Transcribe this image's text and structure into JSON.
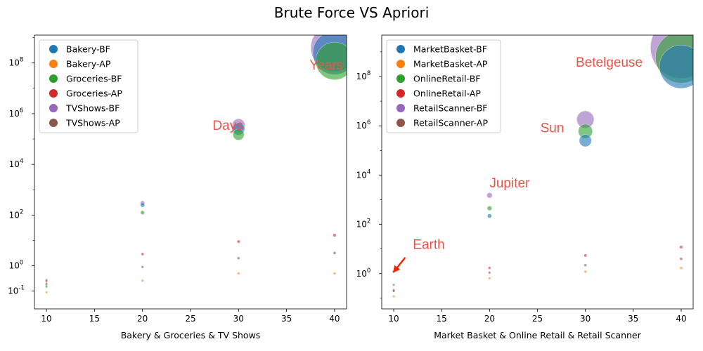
{
  "figure_title": "Brute Force VS Apriori",
  "chart_data": [
    {
      "type": "scatter",
      "xlabel": "Bakery & Groceries & TV Shows",
      "ylabel": "",
      "xlim": [
        8.75,
        41.25
      ],
      "ylim_log10": [
        -1.7,
        9.1
      ],
      "yscale": "log",
      "xticks": [
        "10",
        "15",
        "20",
        "25",
        "30",
        "35",
        "40"
      ],
      "yticks": [
        {
          "exp": -1,
          "label": "10",
          "sup": "-1"
        },
        {
          "exp": 0,
          "label": "10",
          "sup": "0"
        },
        {
          "exp": 2,
          "label": "10",
          "sup": "2"
        },
        {
          "exp": 4,
          "label": "10",
          "sup": "4"
        },
        {
          "exp": 6,
          "label": "10",
          "sup": "6"
        },
        {
          "exp": 8,
          "label": "10",
          "sup": "8"
        }
      ],
      "legend_position": "upper-left",
      "series": [
        {
          "name": "Bakery-BF",
          "color": "#1f77b4",
          "points": [
            {
              "x": 10,
              "y": 0.15
            },
            {
              "x": 20,
              "y": 250
            },
            {
              "x": 30,
              "y": 250000
            },
            {
              "x": 40,
              "y": 250000000
            }
          ]
        },
        {
          "name": "Bakery-AP",
          "color": "#ff7f0e",
          "points": [
            {
              "x": 10,
              "y": 0.09
            },
            {
              "x": 20,
              "y": 0.26
            },
            {
              "x": 30,
              "y": 0.5
            },
            {
              "x": 40,
              "y": 0.5
            }
          ]
        },
        {
          "name": "Groceries-BF",
          "color": "#2ca02c",
          "points": [
            {
              "x": 10,
              "y": 0.18
            },
            {
              "x": 20,
              "y": 125
            },
            {
              "x": 30,
              "y": 150000
            },
            {
              "x": 40,
              "y": 120000000
            }
          ]
        },
        {
          "name": "Groceries-AP",
          "color": "#d62728",
          "points": [
            {
              "x": 10,
              "y": 0.25
            },
            {
              "x": 20,
              "y": 2.9
            },
            {
              "x": 30,
              "y": 9
            },
            {
              "x": 40,
              "y": 16
            }
          ]
        },
        {
          "name": "TVShows-BF",
          "color": "#9467bd",
          "points": [
            {
              "x": 10,
              "y": 0.28
            },
            {
              "x": 20,
              "y": 300
            },
            {
              "x": 30,
              "y": 350000
            },
            {
              "x": 40,
              "y": 400000000
            }
          ]
        },
        {
          "name": "TVShows-AP",
          "color": "#8c564b",
          "points": [
            {
              "x": 10,
              "y": 0.2
            },
            {
              "x": 20,
              "y": 0.9
            },
            {
              "x": 30,
              "y": 2
            },
            {
              "x": 40,
              "y": 3.2
            }
          ]
        }
      ],
      "annotations": [
        {
          "text": "Days",
          "x": 27.3,
          "y": 230000
        },
        {
          "text": "Years",
          "x": 37.4,
          "y": 55000000
        }
      ]
    },
    {
      "type": "scatter",
      "xlabel": "Market Basket & Online Retail & Retail Scanner",
      "ylabel": "",
      "xlim": [
        8.75,
        41.25
      ],
      "ylim_log10": [
        -1.43,
        9.68
      ],
      "yscale": "log",
      "xticks": [
        "10",
        "15",
        "20",
        "25",
        "30",
        "35",
        "40"
      ],
      "yticks": [
        {
          "exp": 0,
          "label": "10",
          "sup": "0"
        },
        {
          "exp": 2,
          "label": "10",
          "sup": "2"
        },
        {
          "exp": 4,
          "label": "10",
          "sup": "4"
        },
        {
          "exp": 6,
          "label": "10",
          "sup": "6"
        },
        {
          "exp": 8,
          "label": "10",
          "sup": "8"
        }
      ],
      "legend_position": "upper-left",
      "series": [
        {
          "name": "MarketBasket-BF",
          "color": "#1f77b4",
          "points": [
            {
              "x": 10,
              "y": 0.2
            },
            {
              "x": 20,
              "y": 220
            },
            {
              "x": 30,
              "y": 250000
            },
            {
              "x": 40,
              "y": 250000000
            }
          ]
        },
        {
          "name": "MarketBasket-AP",
          "color": "#ff7f0e",
          "points": [
            {
              "x": 10,
              "y": 0.12
            },
            {
              "x": 20,
              "y": 0.65
            },
            {
              "x": 30,
              "y": 1.2
            },
            {
              "x": 40,
              "y": 1.7
            }
          ]
        },
        {
          "name": "OnlineRetail-BF",
          "color": "#2ca02c",
          "points": [
            {
              "x": 10,
              "y": 0.35
            },
            {
              "x": 20,
              "y": 450
            },
            {
              "x": 30,
              "y": 600000
            },
            {
              "x": 40,
              "y": 600000000
            }
          ]
        },
        {
          "name": "OnlineRetail-AP",
          "color": "#d62728",
          "points": [
            {
              "x": 10,
              "y": 0.22
            },
            {
              "x": 20,
              "y": 1.7
            },
            {
              "x": 30,
              "y": 5.5
            },
            {
              "x": 40,
              "y": 12
            }
          ]
        },
        {
          "name": "RetailScanner-BF",
          "color": "#9467bd",
          "points": [
            {
              "x": 10,
              "y": 1.2
            },
            {
              "x": 20,
              "y": 1500
            },
            {
              "x": 30,
              "y": 1800000
            },
            {
              "x": 40,
              "y": 1500000000
            }
          ]
        },
        {
          "name": "RetailScanner-AP",
          "color": "#8c564b",
          "points": [
            {
              "x": 10,
              "y": 0.2
            },
            {
              "x": 20,
              "y": 1.1
            },
            {
              "x": 30,
              "y": 2.2
            },
            {
              "x": 40,
              "y": 4
            }
          ]
        }
      ],
      "annotations": [
        {
          "text": "Earth",
          "x": 12.0,
          "y": 10
        },
        {
          "text": "Jupiter",
          "x": 20.0,
          "y": 3200
        },
        {
          "text": "Sun",
          "x": 25.3,
          "y": 550000
        },
        {
          "text": "Betelgeuse",
          "x": 29.0,
          "y": 250000000
        }
      ],
      "arrow": {
        "from": {
          "x": 11.2,
          "y": 4.5
        },
        "to": {
          "x": 10.15,
          "y": 1.4
        }
      }
    }
  ]
}
